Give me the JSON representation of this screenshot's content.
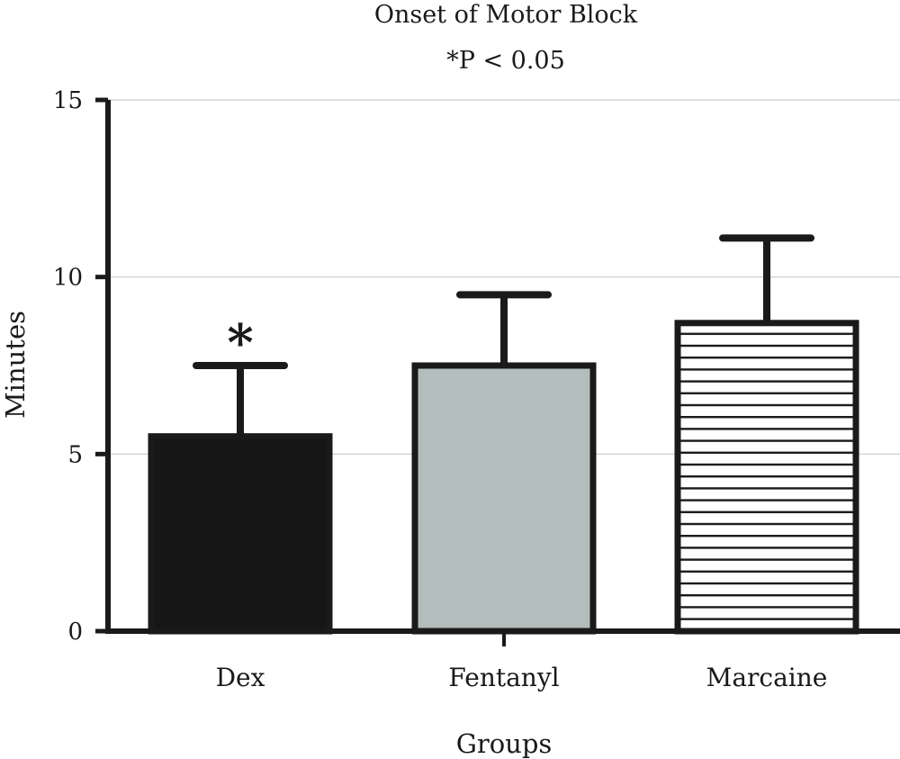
{
  "chart_data": {
    "type": "bar",
    "title": "Onset of Motor Block",
    "subtitle": "*P < 0.05",
    "xlabel": "Groups",
    "ylabel": "Minutes",
    "ylim": [
      0,
      15
    ],
    "yticks": [
      0,
      5,
      10,
      15
    ],
    "grid": true,
    "categories": [
      "Dex",
      "Fentanyl",
      "Marcaine"
    ],
    "values": [
      5.5,
      7.5,
      8.7
    ],
    "error_upper": [
      7.5,
      9.5,
      11.1
    ],
    "bar_fills": [
      "#161616",
      "#b3bdbb",
      "hatch-horizontal"
    ],
    "annotations": [
      {
        "category": "Dex",
        "text": "*"
      }
    ]
  }
}
